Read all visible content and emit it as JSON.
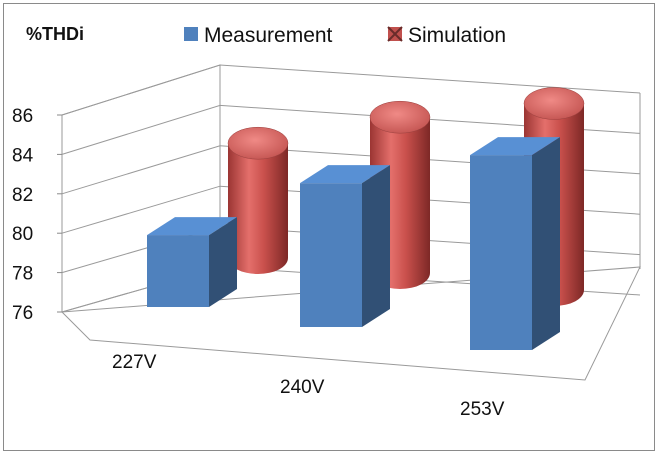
{
  "chart_data": {
    "type": "bar",
    "title": "",
    "ylabel": "%THDi",
    "xlabel": "",
    "categories": [
      "227V",
      "240V",
      "253V"
    ],
    "series": [
      {
        "name": "Measurement",
        "shape": "box",
        "color": "#4f81bd",
        "values": [
          79.1,
          82.2,
          84.4
        ]
      },
      {
        "name": "Simulation",
        "shape": "cylinder",
        "color": "#c0504d",
        "values": [
          81.6,
          83.6,
          85.1
        ]
      }
    ],
    "ylim": [
      76,
      86
    ],
    "yticks": [
      76,
      78,
      80,
      82,
      84,
      86
    ],
    "grid": true,
    "legend": "top",
    "view": "3d-perspective"
  }
}
